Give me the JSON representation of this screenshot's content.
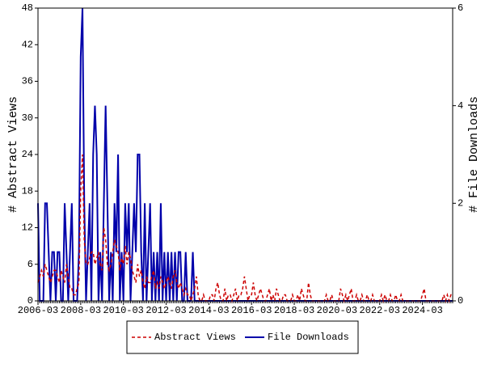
{
  "chart_data": {
    "type": "line",
    "y_label": "# Abstract Views",
    "y2_label": "# File Downloads",
    "categories": [
      "2006-03",
      null,
      null,
      null,
      null,
      null,
      null,
      null,
      null,
      null,
      null,
      null,
      null,
      null,
      null,
      null,
      null,
      null,
      null,
      null,
      null,
      null,
      null,
      null,
      "2008-03",
      null,
      null,
      null,
      null,
      null,
      null,
      null,
      null,
      null,
      null,
      null,
      null,
      null,
      null,
      null,
      null,
      null,
      null,
      null,
      null,
      null,
      null,
      null,
      "2010-03",
      null,
      null,
      null,
      null,
      null,
      null,
      null,
      null,
      null,
      null,
      null,
      null,
      null,
      null,
      null,
      null,
      null,
      null,
      null,
      null,
      null,
      null,
      null,
      "2012-03",
      null,
      null,
      null,
      null,
      null,
      null,
      null,
      null,
      null,
      null,
      null,
      null,
      null,
      null,
      null,
      null,
      null,
      null,
      null,
      null,
      null,
      null,
      null,
      "2014-03",
      null,
      null,
      null,
      null,
      null,
      null,
      null,
      null,
      null,
      null,
      null,
      null,
      null,
      null,
      null,
      null,
      null,
      null,
      null,
      null,
      null,
      null,
      null,
      "2016-03",
      null,
      null,
      null,
      null,
      null,
      null,
      null,
      null,
      null,
      null,
      null,
      null,
      null,
      null,
      null,
      null,
      null,
      null,
      null,
      null,
      null,
      null,
      null,
      "2018-03",
      null,
      null,
      null,
      null,
      null,
      null,
      null,
      null,
      null,
      null,
      null,
      null,
      null,
      null,
      null,
      null,
      null,
      null,
      null,
      null,
      null,
      null,
      null,
      "2020-03",
      null,
      null,
      null,
      null,
      null,
      null,
      null,
      null,
      null,
      null,
      null,
      null,
      null,
      null,
      null,
      null,
      null,
      null,
      null,
      null,
      null,
      null,
      null,
      "2022-03",
      null,
      null,
      null,
      null,
      null,
      null,
      null,
      null,
      null,
      null,
      null,
      null,
      null,
      null,
      null,
      null,
      null,
      null,
      null,
      null,
      null,
      null,
      null,
      "2024-03",
      null,
      null,
      null,
      null,
      null,
      null,
      null,
      null,
      null,
      null,
      null,
      null,
      null,
      null,
      null,
      null,
      null
    ],
    "series": [
      {
        "name": "Abstract Views",
        "color": "#cc0000",
        "dash": true,
        "values": [
          3,
          4,
          5,
          4,
          6,
          5,
          4,
          3,
          4,
          5,
          5,
          4,
          3,
          5,
          4,
          3,
          6,
          4,
          2,
          2,
          1,
          1,
          2,
          3,
          18,
          24,
          10,
          6,
          6,
          7,
          8,
          8,
          6,
          7,
          8,
          6,
          5,
          12,
          10,
          6,
          5,
          6,
          8,
          10,
          9,
          8,
          5,
          7,
          6,
          9,
          6,
          8,
          7,
          5,
          4,
          3,
          6,
          4,
          5,
          3,
          2,
          4,
          3,
          3,
          4,
          5,
          2,
          3,
          2,
          4,
          3,
          2,
          3,
          4,
          3,
          2,
          4,
          5,
          3,
          2,
          3,
          2,
          1,
          2,
          1,
          1,
          0,
          1,
          2,
          4,
          1,
          0,
          0,
          1,
          0,
          0,
          0,
          1,
          1,
          0,
          2,
          3,
          1,
          0,
          0,
          2,
          0,
          1,
          1,
          0,
          1,
          2,
          0,
          1,
          1,
          2,
          4,
          2,
          0,
          1,
          1,
          3,
          1,
          0,
          1,
          2,
          1,
          0,
          0,
          1,
          2,
          0,
          1,
          0,
          2,
          1,
          0,
          0,
          1,
          1,
          0,
          0,
          0,
          1,
          0,
          0,
          1,
          0,
          2,
          1,
          0,
          0,
          3,
          1,
          0,
          0,
          0,
          0,
          0,
          0,
          0,
          0,
          1,
          0,
          0,
          1,
          0,
          0,
          0,
          0,
          2,
          1,
          0,
          1,
          0,
          1,
          2,
          0,
          0,
          1,
          0,
          0,
          1,
          0,
          0,
          1,
          0,
          0,
          1,
          0,
          0,
          0,
          0,
          1,
          0,
          1,
          0,
          0,
          1,
          0,
          0,
          1,
          0,
          0,
          1,
          0,
          0,
          0,
          0,
          0,
          0,
          0,
          0,
          0,
          0,
          0,
          1,
          2,
          0,
          0,
          0,
          0,
          0,
          0,
          0,
          0,
          0,
          0,
          1,
          0,
          1,
          0,
          1,
          1
        ]
      },
      {
        "name": "File Downloads",
        "color": "#0000aa",
        "axis": "y2",
        "dash": false,
        "values": [
          2,
          0,
          0,
          0,
          2,
          2,
          1,
          0,
          1,
          1,
          0,
          1,
          1,
          0,
          0,
          2,
          1,
          0,
          1,
          2,
          0,
          0,
          0,
          1,
          5,
          6,
          2,
          0,
          1,
          2,
          0,
          3,
          4,
          3,
          0,
          1,
          0,
          2,
          4,
          2,
          0,
          1,
          0,
          2,
          1,
          3,
          0,
          1,
          0,
          2,
          1,
          2,
          0,
          1,
          2,
          1,
          3,
          3,
          1,
          0,
          2,
          0,
          1,
          2,
          0,
          1,
          0,
          1,
          0,
          2,
          0,
          1,
          0,
          1,
          0,
          1,
          0,
          1,
          0,
          1,
          1,
          0,
          0,
          1,
          0,
          0,
          0,
          1,
          0,
          0,
          0,
          0,
          0,
          0,
          0,
          0,
          0,
          0,
          0,
          0,
          0,
          0,
          0,
          0,
          0,
          0,
          0,
          0,
          0,
          0,
          0,
          0,
          0,
          0,
          0,
          0,
          0,
          0,
          0,
          0,
          0,
          0,
          0,
          0,
          0,
          0,
          0,
          0,
          0,
          0,
          0,
          0,
          0,
          0,
          0,
          0,
          0,
          0,
          0,
          0,
          0,
          0,
          0,
          0,
          0,
          0,
          0,
          0,
          0,
          0,
          0,
          0,
          0,
          0,
          0,
          0,
          0,
          0,
          0,
          0,
          0,
          0,
          0,
          0,
          0,
          0,
          0,
          0,
          0,
          0,
          0,
          0,
          0,
          0,
          0,
          0,
          0,
          0,
          0,
          0,
          0,
          0,
          0,
          0,
          0,
          0,
          0,
          0,
          0,
          0,
          0,
          0,
          0,
          0,
          0,
          0,
          0,
          0,
          0,
          0,
          0,
          0,
          0,
          0,
          0,
          0,
          0,
          0,
          0,
          0,
          0,
          0,
          0,
          0,
          0,
          0,
          0,
          0,
          0,
          0,
          0,
          0,
          0,
          0,
          0,
          0,
          0,
          0,
          0,
          0,
          0,
          0,
          0,
          0
        ]
      }
    ],
    "ylim": [
      0,
      48
    ],
    "yticks": [
      0,
      6,
      12,
      18,
      24,
      30,
      36,
      42,
      48
    ],
    "y2lim": [
      0,
      6
    ],
    "y2ticks": [
      0,
      2,
      4,
      6
    ],
    "legend": "bottom"
  }
}
